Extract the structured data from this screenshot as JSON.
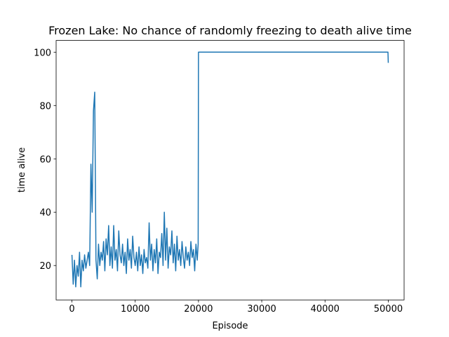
{
  "chart_data": {
    "type": "line",
    "title": "Frozen Lake: No chance of randomly freezing to death alive time",
    "x_label": "Episode",
    "y_label": "time alive",
    "color": "#1f77b4",
    "x": [
      0,
      200,
      400,
      600,
      800,
      1000,
      1200,
      1400,
      1600,
      1800,
      2000,
      2200,
      2400,
      2600,
      2800,
      3000,
      3200,
      3400,
      3600,
      3800,
      4000,
      4200,
      4400,
      4600,
      4800,
      5000,
      5200,
      5400,
      5600,
      5800,
      6000,
      6200,
      6400,
      6600,
      6800,
      7000,
      7200,
      7400,
      7600,
      7800,
      8000,
      8200,
      8400,
      8600,
      8800,
      9000,
      9200,
      9400,
      9600,
      9800,
      10000,
      10200,
      10400,
      10600,
      10800,
      11000,
      11200,
      11400,
      11600,
      11800,
      12000,
      12200,
      12400,
      12600,
      12800,
      13000,
      13200,
      13400,
      13600,
      13800,
      14000,
      14200,
      14400,
      14600,
      14800,
      15000,
      15200,
      15400,
      15600,
      15800,
      16000,
      16200,
      16400,
      16600,
      16800,
      17000,
      17200,
      17400,
      17600,
      17800,
      18000,
      18200,
      18400,
      18600,
      18800,
      19000,
      19200,
      19400,
      19600,
      19800,
      19950,
      20000,
      49950,
      50000
    ],
    "values": [
      24,
      13,
      22,
      12,
      20,
      16,
      25,
      12,
      22,
      18,
      24,
      19,
      22,
      25,
      20,
      58,
      40,
      78,
      85,
      22,
      15,
      28,
      20,
      25,
      22,
      29,
      18,
      30,
      24,
      35,
      20,
      27,
      19,
      35,
      22,
      26,
      18,
      33,
      24,
      21,
      28,
      20,
      25,
      17,
      30,
      22,
      26,
      19,
      31,
      23,
      20,
      25,
      18,
      27,
      20,
      24,
      17,
      26,
      21,
      23,
      19,
      36,
      22,
      28,
      18,
      26,
      21,
      30,
      17,
      25,
      23,
      32,
      20,
      40,
      22,
      34,
      19,
      27,
      24,
      33,
      21,
      28,
      18,
      31,
      22,
      26,
      20,
      29,
      23,
      19,
      27,
      22,
      25,
      20,
      29,
      23,
      26,
      18,
      28,
      22,
      28,
      100,
      100,
      96
    ],
    "xlim": [
      -2500,
      52500
    ],
    "ylim": [
      7.1,
      104.4
    ],
    "xticks": [
      0,
      10000,
      20000,
      30000,
      40000,
      50000
    ],
    "yticks": [
      20,
      40,
      60,
      80,
      100
    ]
  }
}
